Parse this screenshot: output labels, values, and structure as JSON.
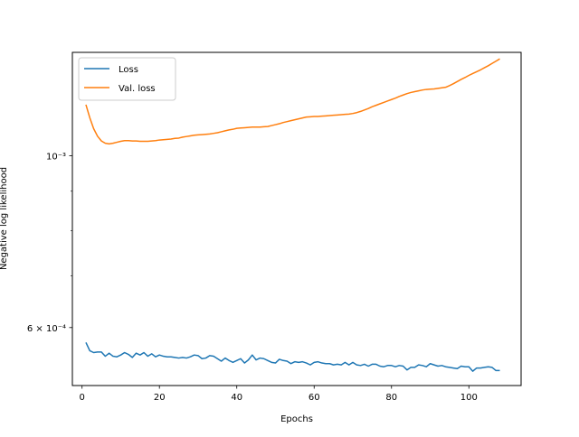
{
  "chart_data": {
    "type": "line",
    "title": "",
    "xlabel": "Epochs",
    "ylabel": "Negative log likelihood",
    "y_scale": "log",
    "xlim": [
      -2.5,
      113.5
    ],
    "ylim": [
      0.000505,
      0.00136
    ],
    "grid": false,
    "legend_position": "top-left",
    "x_ticks": [
      0,
      20,
      40,
      60,
      80,
      100
    ],
    "x_tick_labels": [
      "0",
      "20",
      "40",
      "60",
      "80",
      "100"
    ],
    "y_ticks": [
      0.0006,
      0.001
    ],
    "y_tick_labels": [
      "6 × 10⁻⁴",
      "10⁻³"
    ],
    "y_minor_ticks": [
      0.0007,
      0.0008,
      0.0009
    ],
    "series": [
      {
        "name": "Loss",
        "color": "#1f77b4",
        "x": [
          1,
          2,
          3,
          4,
          5,
          6,
          7,
          8,
          9,
          10,
          11,
          12,
          13,
          14,
          15,
          16,
          17,
          18,
          19,
          20,
          21,
          22,
          23,
          24,
          25,
          26,
          27,
          28,
          29,
          30,
          31,
          32,
          33,
          34,
          35,
          36,
          37,
          38,
          39,
          40,
          41,
          42,
          43,
          44,
          45,
          46,
          47,
          48,
          49,
          50,
          51,
          52,
          53,
          54,
          55,
          56,
          57,
          58,
          59,
          60,
          61,
          62,
          63,
          64,
          65,
          66,
          67,
          68,
          69,
          70,
          71,
          72,
          73,
          74,
          75,
          76,
          77,
          78,
          79,
          80,
          81,
          82,
          83,
          84,
          85,
          86,
          87,
          88,
          89,
          90,
          91,
          92,
          93,
          94,
          95,
          96,
          97,
          98,
          99,
          100,
          101,
          102,
          103,
          104,
          105,
          106,
          107,
          108
        ],
        "y": [
          0.000574,
          0.00056,
          0.000557,
          0.000558,
          0.000558,
          0.000551,
          0.000556,
          0.000551,
          0.00055,
          0.000553,
          0.000557,
          0.000554,
          0.000549,
          0.000556,
          0.000553,
          0.000557,
          0.000551,
          0.000555,
          0.00055,
          0.000553,
          0.000551,
          0.00055,
          0.00055,
          0.000549,
          0.000548,
          0.000549,
          0.000548,
          0.00055,
          0.000553,
          0.000552,
          0.000547,
          0.000548,
          0.000552,
          0.000551,
          0.000547,
          0.000543,
          0.000548,
          0.000544,
          0.000541,
          0.000544,
          0.000547,
          0.00054,
          0.000545,
          0.000553,
          0.000545,
          0.000548,
          0.000547,
          0.000544,
          0.000541,
          0.00054,
          0.000546,
          0.000544,
          0.000543,
          0.000539,
          0.000542,
          0.000541,
          0.000542,
          0.00054,
          0.000537,
          0.000541,
          0.000542,
          0.00054,
          0.000539,
          0.000539,
          0.000537,
          0.000538,
          0.000537,
          0.000541,
          0.000537,
          0.000541,
          0.000537,
          0.000536,
          0.000538,
          0.000535,
          0.000538,
          0.000538,
          0.000535,
          0.000534,
          0.000536,
          0.000536,
          0.000534,
          0.000536,
          0.000535,
          0.000529,
          0.000533,
          0.000533,
          0.000537,
          0.000536,
          0.000534,
          0.000539,
          0.000537,
          0.000535,
          0.000536,
          0.000534,
          0.000533,
          0.000532,
          0.000531,
          0.000535,
          0.000534,
          0.000534,
          0.000527,
          0.000532,
          0.000532,
          0.000533,
          0.000534,
          0.000533,
          0.000528,
          0.000528
        ]
      },
      {
        "name": "Val. loss",
        "color": "#ff7f0e",
        "x": [
          1,
          2,
          3,
          4,
          5,
          6,
          7,
          8,
          9,
          10,
          11,
          12,
          13,
          14,
          15,
          16,
          17,
          18,
          19,
          20,
          21,
          22,
          23,
          24,
          25,
          26,
          27,
          28,
          29,
          30,
          31,
          32,
          33,
          34,
          35,
          36,
          37,
          38,
          39,
          40,
          41,
          42,
          43,
          44,
          45,
          46,
          47,
          48,
          49,
          50,
          51,
          52,
          53,
          54,
          55,
          56,
          57,
          58,
          59,
          60,
          61,
          62,
          63,
          64,
          65,
          66,
          67,
          68,
          69,
          70,
          71,
          72,
          73,
          74,
          75,
          76,
          77,
          78,
          79,
          80,
          81,
          82,
          83,
          84,
          85,
          86,
          87,
          88,
          89,
          90,
          91,
          92,
          93,
          94,
          95,
          96,
          97,
          98,
          99,
          100,
          101,
          102,
          103,
          104,
          105,
          106,
          107,
          108
        ],
        "y": [
          0.001164,
          0.00112,
          0.001084,
          0.00106,
          0.001045,
          0.001038,
          0.001036,
          0.001038,
          0.001041,
          0.001044,
          0.001046,
          0.001046,
          0.001045,
          0.001045,
          0.001044,
          0.001044,
          0.001044,
          0.001045,
          0.001046,
          0.001048,
          0.001049,
          0.00105,
          0.001051,
          0.001053,
          0.001054,
          0.001057,
          0.001059,
          0.001061,
          0.001063,
          0.001064,
          0.001065,
          0.001066,
          0.001067,
          0.001069,
          0.001071,
          0.001074,
          0.001077,
          0.00108,
          0.001082,
          0.001085,
          0.001086,
          0.001087,
          0.001088,
          0.001089,
          0.001089,
          0.001089,
          0.00109,
          0.001091,
          0.001094,
          0.001097,
          0.0011,
          0.001104,
          0.001107,
          0.00111,
          0.001113,
          0.001116,
          0.001119,
          0.001122,
          0.001123,
          0.001124,
          0.001124,
          0.001125,
          0.001126,
          0.001127,
          0.001128,
          0.001129,
          0.00113,
          0.001131,
          0.001132,
          0.001134,
          0.001137,
          0.001141,
          0.001146,
          0.001151,
          0.001157,
          0.001162,
          0.001167,
          0.001172,
          0.001177,
          0.001182,
          0.001187,
          0.001193,
          0.001198,
          0.001203,
          0.001207,
          0.00121,
          0.001213,
          0.001216,
          0.001218,
          0.001219,
          0.00122,
          0.001222,
          0.001224,
          0.001226,
          0.001232,
          0.001239,
          0.001247,
          0.001255,
          0.001262,
          0.00127,
          0.001277,
          0.001284,
          0.001291,
          0.001299,
          0.001307,
          0.001316,
          0.001325,
          0.001334
        ]
      }
    ]
  }
}
